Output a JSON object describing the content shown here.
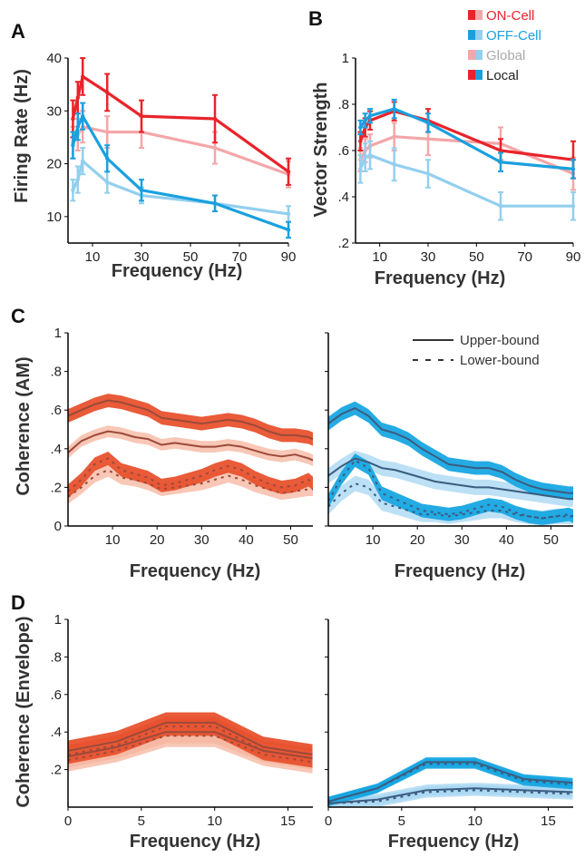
{
  "legend": {
    "items": [
      {
        "label": "ON-Cell",
        "color": "#e8242a",
        "swatch_colors": [
          "#e8242a",
          "#f4a6a8"
        ]
      },
      {
        "label": "OFF-Cell",
        "color": "#1aa0de",
        "swatch_colors": [
          "#1aa0de",
          "#93cfee"
        ]
      },
      {
        "label": "Global",
        "color": "#a9a9a9",
        "swatch_colors": [
          "#f4a6a8",
          "#93cfee"
        ]
      },
      {
        "label": "Local",
        "color": "#222222",
        "swatch_colors": [
          "#e8242a",
          "#1aa0de"
        ]
      }
    ],
    "position": "top-right"
  },
  "line_legend": {
    "items": [
      {
        "label": "Upper-bound",
        "style": "solid"
      },
      {
        "label": "Lower-bound",
        "style": "dashed"
      }
    ],
    "position": "top-right"
  },
  "panel_letters": [
    "A",
    "B",
    "C",
    "D"
  ],
  "colors": {
    "on_local": "#e8242a",
    "on_global": "#f4a6a8",
    "off_local": "#1aa0de",
    "off_global": "#93cfee",
    "on_band_dark": "#e8522e",
    "on_band_light": "#f6b49e",
    "on_line": "#9c4a3a",
    "off_band_dark": "#18a6e2",
    "off_band_light": "#a6d6f2",
    "off_line": "#3b5c80"
  },
  "chart_data": [
    {
      "id": "A",
      "type": "line",
      "xlabel": "Frequency (Hz)",
      "ylabel": "Firing Rate (Hz)",
      "xlim": [
        0,
        90
      ],
      "ylim": [
        5,
        40
      ],
      "xticks": [
        10,
        30,
        50,
        70,
        90
      ],
      "yticks": [
        10,
        20,
        30,
        40
      ],
      "series": [
        {
          "name": "ON-Cell Local",
          "x": [
            2,
            4,
            6,
            16,
            30,
            60,
            90
          ],
          "y": [
            28.5,
            32.5,
            36.5,
            33.5,
            29,
            28.5,
            18.5
          ],
          "err": [
            3.5,
            3,
            3.5,
            3.5,
            3,
            4.5,
            2.5
          ]
        },
        {
          "name": "ON-Cell Global",
          "x": [
            2,
            4,
            6,
            16,
            30,
            60,
            90
          ],
          "y": [
            24,
            25.5,
            27,
            26,
            26,
            23,
            18
          ],
          "err": [
            3,
            3,
            3,
            3,
            3,
            3,
            2.5
          ]
        },
        {
          "name": "OFF-Cell Local",
          "x": [
            2,
            4,
            6,
            16,
            30,
            60,
            90
          ],
          "y": [
            23.5,
            27,
            29,
            21,
            15,
            12.5,
            7.5
          ],
          "err": [
            2.5,
            2.5,
            2.5,
            2.5,
            2,
            1.5,
            1.5
          ]
        },
        {
          "name": "OFF-Cell Global",
          "x": [
            2,
            4,
            6,
            16,
            30,
            60,
            90
          ],
          "y": [
            15,
            17,
            20.5,
            16.5,
            14,
            12.5,
            10.5
          ],
          "err": [
            2,
            2.5,
            2.5,
            2,
            1.5,
            1.5,
            1.5
          ]
        }
      ]
    },
    {
      "id": "B",
      "type": "line",
      "xlabel": "Frequency (Hz)",
      "ylabel": "Vector Strength",
      "xlim": [
        0,
        90
      ],
      "ylim": [
        0.2,
        1
      ],
      "xticks": [
        10,
        30,
        50,
        70,
        90
      ],
      "yticks": [
        0.2,
        0.4,
        0.6,
        0.8,
        1
      ],
      "ytick_labels": [
        ".2",
        ".4",
        ".6",
        ".8",
        "1"
      ],
      "series": [
        {
          "name": "ON-Cell Local",
          "x": [
            2,
            4,
            6,
            16,
            30,
            60,
            90
          ],
          "y": [
            0.64,
            0.7,
            0.73,
            0.77,
            0.73,
            0.6,
            0.56
          ],
          "err": [
            0.04,
            0.04,
            0.04,
            0.04,
            0.05,
            0.05,
            0.08
          ]
        },
        {
          "name": "ON-Cell Global",
          "x": [
            2,
            4,
            6,
            16,
            30,
            60,
            90
          ],
          "y": [
            0.56,
            0.6,
            0.62,
            0.66,
            0.65,
            0.63,
            0.5
          ],
          "err": [
            0.05,
            0.05,
            0.05,
            0.06,
            0.07,
            0.07,
            0.07
          ]
        },
        {
          "name": "OFF-Cell Local",
          "x": [
            2,
            4,
            6,
            16,
            30,
            60,
            90
          ],
          "y": [
            0.7,
            0.73,
            0.75,
            0.78,
            0.72,
            0.55,
            0.52
          ],
          "err": [
            0.03,
            0.03,
            0.03,
            0.04,
            0.04,
            0.04,
            0.04
          ]
        },
        {
          "name": "OFF-Cell Global",
          "x": [
            2,
            4,
            6,
            16,
            30,
            60,
            90
          ],
          "y": [
            0.52,
            0.57,
            0.58,
            0.54,
            0.5,
            0.36,
            0.36
          ],
          "err": [
            0.06,
            0.06,
            0.06,
            0.07,
            0.06,
            0.06,
            0.06
          ]
        }
      ]
    },
    {
      "id": "C-ON",
      "type": "area",
      "xlabel": "Frequency (Hz)",
      "ylabel": "Coherence (AM)",
      "xlim": [
        0,
        55
      ],
      "ylim": [
        0,
        1
      ],
      "xticks": [
        10,
        20,
        30,
        40,
        50
      ],
      "yticks": [
        0,
        0.2,
        0.4,
        0.6,
        0.8,
        1
      ],
      "ytick_labels": [
        "0",
        ".2",
        ".4",
        ".6",
        ".8",
        "1"
      ],
      "series": [
        {
          "name": "Local Upper-bound",
          "band": "dark",
          "x": [
            0,
            3,
            6,
            9,
            12,
            15,
            18,
            21,
            24,
            27,
            30,
            33,
            36,
            39,
            42,
            45,
            48,
            51,
            54,
            55
          ],
          "y": [
            0.57,
            0.6,
            0.63,
            0.65,
            0.64,
            0.62,
            0.6,
            0.56,
            0.55,
            0.54,
            0.53,
            0.54,
            0.55,
            0.54,
            0.52,
            0.49,
            0.47,
            0.47,
            0.46,
            0.45
          ],
          "hw": 0.035
        },
        {
          "name": "Global Upper-bound",
          "band": "light",
          "x": [
            0,
            3,
            6,
            9,
            12,
            15,
            18,
            21,
            24,
            27,
            30,
            33,
            36,
            39,
            42,
            45,
            48,
            51,
            54,
            55
          ],
          "y": [
            0.38,
            0.44,
            0.47,
            0.49,
            0.48,
            0.46,
            0.45,
            0.42,
            0.43,
            0.42,
            0.41,
            0.41,
            0.42,
            0.41,
            0.39,
            0.37,
            0.36,
            0.37,
            0.35,
            0.34
          ],
          "hw": 0.03
        },
        {
          "name": "Local Lower-bound",
          "band": "dark",
          "x": [
            0,
            3,
            6,
            9,
            12,
            15,
            18,
            21,
            24,
            27,
            30,
            33,
            36,
            39,
            42,
            45,
            48,
            51,
            54,
            55
          ],
          "y": [
            0.18,
            0.24,
            0.32,
            0.35,
            0.29,
            0.27,
            0.25,
            0.21,
            0.22,
            0.24,
            0.26,
            0.29,
            0.31,
            0.29,
            0.25,
            0.22,
            0.2,
            0.21,
            0.24,
            0.22
          ],
          "hw": 0.035
        },
        {
          "name": "Global Lower-bound",
          "band": "light",
          "x": [
            0,
            3,
            6,
            9,
            12,
            15,
            18,
            21,
            24,
            27,
            30,
            33,
            36,
            39,
            42,
            45,
            48,
            51,
            54,
            55
          ],
          "y": [
            0.15,
            0.2,
            0.26,
            0.29,
            0.25,
            0.24,
            0.22,
            0.19,
            0.2,
            0.21,
            0.22,
            0.24,
            0.26,
            0.24,
            0.21,
            0.19,
            0.17,
            0.18,
            0.19,
            0.19
          ],
          "hw": 0.035
        }
      ]
    },
    {
      "id": "C-OFF",
      "type": "area",
      "xlabel": "Frequency (Hz)",
      "ylabel": "",
      "xlim": [
        0,
        55
      ],
      "ylim": [
        0,
        1
      ],
      "xticks": [
        10,
        20,
        30,
        40,
        50
      ],
      "yticks": [
        0,
        0.2,
        0.4,
        0.6,
        0.8,
        1
      ],
      "series": [
        {
          "name": "Local Upper-bound",
          "band": "dark",
          "x": [
            0,
            3,
            6,
            9,
            12,
            15,
            18,
            21,
            24,
            27,
            30,
            33,
            36,
            39,
            42,
            45,
            48,
            51,
            54,
            55
          ],
          "y": [
            0.53,
            0.58,
            0.61,
            0.57,
            0.5,
            0.48,
            0.45,
            0.4,
            0.36,
            0.32,
            0.31,
            0.3,
            0.3,
            0.28,
            0.24,
            0.21,
            0.19,
            0.18,
            0.17,
            0.17
          ],
          "hw": 0.035
        },
        {
          "name": "Global Upper-bound",
          "band": "light",
          "x": [
            0,
            3,
            6,
            9,
            12,
            15,
            18,
            21,
            24,
            27,
            30,
            33,
            36,
            39,
            42,
            45,
            48,
            51,
            54,
            55
          ],
          "y": [
            0.26,
            0.31,
            0.35,
            0.33,
            0.3,
            0.29,
            0.27,
            0.25,
            0.23,
            0.22,
            0.21,
            0.2,
            0.2,
            0.19,
            0.18,
            0.17,
            0.16,
            0.15,
            0.14,
            0.14
          ],
          "hw": 0.04
        },
        {
          "name": "Local Lower-bound",
          "band": "dark",
          "x": [
            0,
            3,
            6,
            9,
            12,
            15,
            18,
            21,
            24,
            27,
            30,
            33,
            36,
            39,
            42,
            45,
            48,
            51,
            54,
            55
          ],
          "y": [
            0.13,
            0.25,
            0.34,
            0.3,
            0.17,
            0.14,
            0.11,
            0.08,
            0.07,
            0.06,
            0.07,
            0.09,
            0.11,
            0.1,
            0.07,
            0.05,
            0.04,
            0.05,
            0.06,
            0.05
          ],
          "hw": 0.035
        },
        {
          "name": "Global Lower-bound",
          "band": "light",
          "x": [
            0,
            3,
            6,
            9,
            12,
            15,
            18,
            21,
            24,
            27,
            30,
            33,
            36,
            39,
            42,
            45,
            48,
            51,
            54,
            55
          ],
          "y": [
            0.1,
            0.17,
            0.22,
            0.2,
            0.12,
            0.1,
            0.08,
            0.06,
            0.06,
            0.05,
            0.06,
            0.07,
            0.08,
            0.08,
            0.06,
            0.05,
            0.04,
            0.05,
            0.05,
            0.05
          ],
          "hw": 0.04
        }
      ]
    },
    {
      "id": "D-ON",
      "type": "area",
      "xlabel": "Frequency (Hz)",
      "ylabel": "Coherence (Envelope)",
      "xlim": [
        0,
        16.7
      ],
      "ylim": [
        0,
        1
      ],
      "xticks": [
        0,
        5,
        10,
        15
      ],
      "yticks": [
        0.2,
        0.4,
        0.6,
        0.8,
        1
      ],
      "ytick_labels": [
        ".2",
        ".4",
        ".6",
        ".8",
        "1"
      ],
      "series": [
        {
          "name": "Local Upper-bound",
          "band": "dark",
          "x": [
            0,
            3.33,
            6.67,
            10,
            13.33,
            16.67
          ],
          "y": [
            0.3,
            0.35,
            0.45,
            0.45,
            0.32,
            0.28
          ],
          "hw": 0.055
        },
        {
          "name": "Global Upper-bound",
          "band": "light",
          "x": [
            0,
            3.33,
            6.67,
            10,
            13.33,
            16.67
          ],
          "y": [
            0.27,
            0.32,
            0.4,
            0.4,
            0.3,
            0.26
          ],
          "hw": 0.06
        },
        {
          "name": "Local Lower-bound",
          "band": "dark",
          "x": [
            0,
            3.33,
            6.67,
            10,
            13.33,
            16.67
          ],
          "y": [
            0.28,
            0.33,
            0.43,
            0.43,
            0.3,
            0.26
          ],
          "hw": 0.05
        },
        {
          "name": "Global Lower-bound",
          "band": "light",
          "x": [
            0,
            3.33,
            6.67,
            10,
            13.33,
            16.67
          ],
          "y": [
            0.25,
            0.3,
            0.38,
            0.38,
            0.28,
            0.24
          ],
          "hw": 0.06
        }
      ]
    },
    {
      "id": "D-OFF",
      "type": "area",
      "xlabel": "Frequency (Hz)",
      "ylabel": "",
      "xlim": [
        0,
        16.7
      ],
      "ylim": [
        0,
        1
      ],
      "xticks": [
        0,
        5,
        10,
        15
      ],
      "yticks": [
        0.2,
        0.4,
        0.6,
        0.8,
        1
      ],
      "series": [
        {
          "name": "Local Upper-bound",
          "band": "dark",
          "x": [
            0,
            3.33,
            6.67,
            10,
            13.33,
            16.67
          ],
          "y": [
            0.03,
            0.1,
            0.24,
            0.24,
            0.15,
            0.13
          ],
          "hw": 0.025
        },
        {
          "name": "Global Upper-bound",
          "band": "light",
          "x": [
            0,
            3.33,
            6.67,
            10,
            13.33,
            16.67
          ],
          "y": [
            0.02,
            0.04,
            0.09,
            0.1,
            0.09,
            0.08
          ],
          "hw": 0.03
        },
        {
          "name": "Local Lower-bound",
          "band": "dark",
          "x": [
            0,
            3.33,
            6.67,
            10,
            13.33,
            16.67
          ],
          "y": [
            0.03,
            0.1,
            0.23,
            0.23,
            0.14,
            0.12
          ],
          "hw": 0.025
        },
        {
          "name": "Global Lower-bound",
          "band": "light",
          "x": [
            0,
            3.33,
            6.67,
            10,
            13.33,
            16.67
          ],
          "y": [
            0.02,
            0.03,
            0.08,
            0.09,
            0.08,
            0.07
          ],
          "hw": 0.03
        }
      ]
    }
  ]
}
